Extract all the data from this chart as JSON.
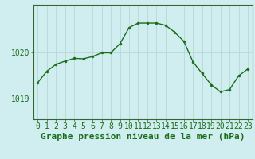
{
  "hours": [
    0,
    1,
    2,
    3,
    4,
    5,
    6,
    7,
    8,
    9,
    10,
    11,
    12,
    13,
    14,
    15,
    16,
    17,
    18,
    19,
    20,
    21,
    22,
    23
  ],
  "pressure": [
    1019.35,
    1019.6,
    1019.75,
    1019.82,
    1019.88,
    1019.87,
    1019.92,
    1020.0,
    1020.0,
    1020.2,
    1020.55,
    1020.65,
    1020.65,
    1020.65,
    1020.6,
    1020.45,
    1020.25,
    1019.8,
    1019.55,
    1019.3,
    1019.15,
    1019.2,
    1019.5,
    1019.65
  ],
  "line_color": "#1a6e1a",
  "marker_color": "#1a6e1a",
  "bg_color": "#d0eef0",
  "grid_color": "#b8d8d8",
  "text_color": "#1a6e1a",
  "ylabel_left_ticks": [
    1019,
    1020
  ],
  "xlabel": "Graphe pression niveau de la mer (hPa)",
  "ylim": [
    1018.55,
    1021.05
  ],
  "xlim": [
    -0.5,
    23.5
  ],
  "tick_fontsize": 7.0,
  "xlabel_fontsize": 8.0
}
